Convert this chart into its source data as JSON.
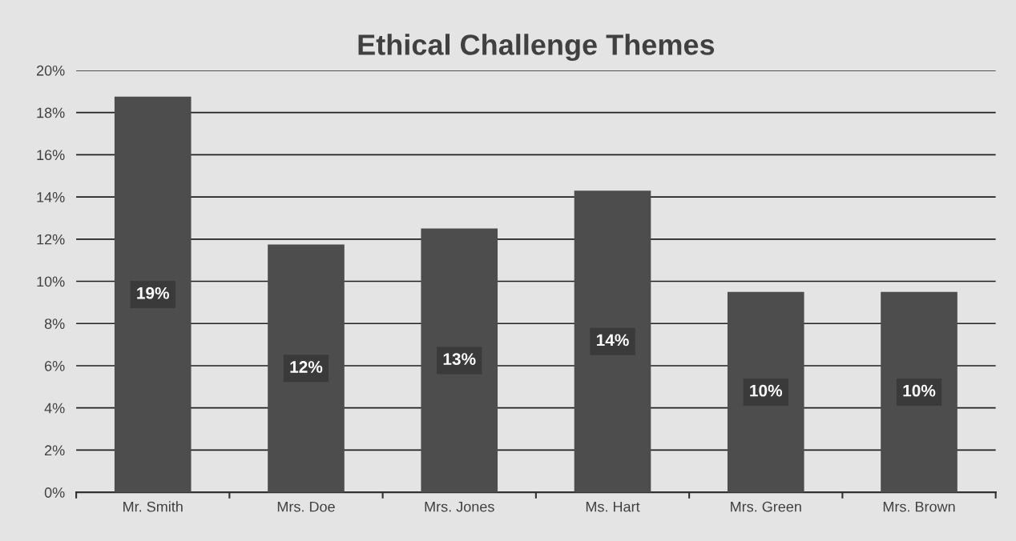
{
  "chart_data": {
    "type": "bar",
    "title": "Ethical Challenge Themes",
    "categories": [
      "Mr. Smith",
      "Mrs. Doe",
      "Mrs. Jones",
      "Ms. Hart",
      "Mrs. Green",
      "Mrs. Brown"
    ],
    "values": [
      18.75,
      11.75,
      12.5,
      14.3,
      9.5,
      9.5
    ],
    "value_labels": [
      "19%",
      "12%",
      "13%",
      "14%",
      "10%",
      "10%"
    ],
    "color": "#4d4d4d",
    "ylim": [
      0,
      20
    ],
    "yticks": [
      {
        "value": 0,
        "label": "0%"
      },
      {
        "value": 2,
        "label": "2%"
      },
      {
        "value": 4,
        "label": "4%"
      },
      {
        "value": 6,
        "label": "6%"
      },
      {
        "value": 8,
        "label": "8%"
      },
      {
        "value": 10,
        "label": "10%"
      },
      {
        "value": 12,
        "label": "12%"
      },
      {
        "value": 14,
        "label": "14%"
      },
      {
        "value": 16,
        "label": "16%"
      },
      {
        "value": 18,
        "label": "18%"
      },
      {
        "value": 20,
        "label": "20%"
      }
    ],
    "grid": "y",
    "legend": false
  }
}
